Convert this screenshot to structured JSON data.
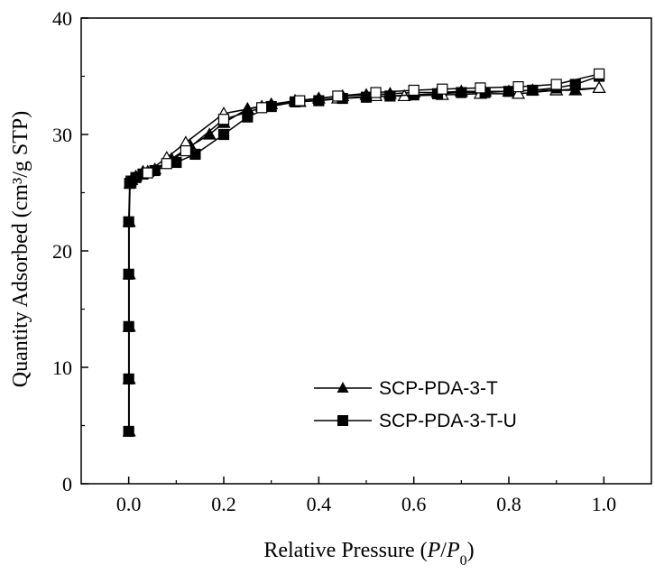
{
  "chart_data": {
    "type": "line",
    "xlabel_prefix": "Relative Pressure (",
    "xlabel_p": "P",
    "xlabel_slash": "/",
    "xlabel_p0": "P",
    "xlabel_p0_sub": "0",
    "xlabel_suffix": ")",
    "ylabel": "Quantity Adsorbed (cm³/g STP)",
    "xlim": [
      -0.1,
      1.1
    ],
    "ylim": [
      0,
      40
    ],
    "xticks": [
      0.0,
      0.2,
      0.4,
      0.6,
      0.8,
      1.0
    ],
    "xtick_labels": [
      "0.0",
      "0.2",
      "0.4",
      "0.6",
      "0.8",
      "1.0"
    ],
    "yticks": [
      0,
      10,
      20,
      30,
      40
    ],
    "ytick_labels": [
      "0",
      "10",
      "20",
      "30",
      "40"
    ],
    "grid": false,
    "legend_position": "lower-right",
    "series": [
      {
        "name": "SCP-PDA-3-T",
        "marker": "triangle",
        "color": "#000000",
        "adsorption": [
          [
            0.001,
            4.5
          ],
          [
            0.001,
            9.0
          ],
          [
            0.001,
            13.5
          ],
          [
            0.001,
            18.0
          ],
          [
            0.001,
            22.5
          ],
          [
            0.003,
            25.8
          ],
          [
            0.006,
            26.1
          ],
          [
            0.015,
            26.4
          ],
          [
            0.03,
            26.8
          ],
          [
            0.055,
            27.0
          ],
          [
            0.09,
            27.9
          ],
          [
            0.13,
            29.0
          ],
          [
            0.17,
            30.0
          ],
          [
            0.2,
            31.0
          ],
          [
            0.25,
            32.2
          ],
          [
            0.3,
            32.6
          ],
          [
            0.35,
            32.9
          ],
          [
            0.4,
            33.1
          ],
          [
            0.45,
            33.3
          ],
          [
            0.5,
            33.4
          ],
          [
            0.55,
            33.5
          ],
          [
            0.6,
            33.6
          ],
          [
            0.65,
            33.6
          ],
          [
            0.7,
            33.7
          ],
          [
            0.75,
            33.7
          ],
          [
            0.8,
            33.7
          ],
          [
            0.85,
            33.8
          ],
          [
            0.9,
            33.8
          ],
          [
            0.94,
            33.8
          ],
          [
            0.99,
            34.0
          ]
        ],
        "desorption": [
          [
            0.99,
            34.0
          ],
          [
            0.9,
            33.8
          ],
          [
            0.82,
            33.5
          ],
          [
            0.74,
            33.5
          ],
          [
            0.66,
            33.4
          ],
          [
            0.58,
            33.3
          ],
          [
            0.52,
            33.3
          ],
          [
            0.44,
            33.1
          ],
          [
            0.36,
            32.8
          ],
          [
            0.28,
            32.4
          ],
          [
            0.2,
            31.8
          ],
          [
            0.12,
            29.3
          ],
          [
            0.08,
            28.0
          ],
          [
            0.04,
            26.8
          ]
        ]
      },
      {
        "name": "SCP-PDA-3-T-U",
        "marker": "square",
        "color": "#000000",
        "adsorption": [
          [
            0.0,
            4.5
          ],
          [
            0.0,
            9.0
          ],
          [
            0.0,
            13.5
          ],
          [
            0.0,
            18.0
          ],
          [
            0.0,
            22.5
          ],
          [
            0.002,
            25.8
          ],
          [
            0.005,
            26.0
          ],
          [
            0.015,
            26.3
          ],
          [
            0.03,
            26.6
          ],
          [
            0.055,
            26.9
          ],
          [
            0.1,
            27.6
          ],
          [
            0.14,
            28.3
          ],
          [
            0.2,
            30.0
          ],
          [
            0.25,
            31.5
          ],
          [
            0.3,
            32.4
          ],
          [
            0.35,
            32.8
          ],
          [
            0.4,
            32.9
          ],
          [
            0.45,
            33.1
          ],
          [
            0.5,
            33.2
          ],
          [
            0.55,
            33.3
          ],
          [
            0.6,
            33.4
          ],
          [
            0.65,
            33.5
          ],
          [
            0.7,
            33.6
          ],
          [
            0.75,
            33.6
          ],
          [
            0.8,
            33.7
          ],
          [
            0.85,
            33.8
          ],
          [
            0.9,
            34.0
          ],
          [
            0.94,
            34.3
          ],
          [
            0.99,
            35.0
          ]
        ],
        "desorption": [
          [
            0.99,
            35.2
          ],
          [
            0.9,
            34.3
          ],
          [
            0.82,
            34.1
          ],
          [
            0.74,
            34.0
          ],
          [
            0.66,
            33.9
          ],
          [
            0.6,
            33.8
          ],
          [
            0.52,
            33.6
          ],
          [
            0.44,
            33.3
          ],
          [
            0.36,
            32.9
          ],
          [
            0.28,
            32.3
          ],
          [
            0.2,
            31.3
          ],
          [
            0.12,
            28.6
          ],
          [
            0.08,
            27.5
          ],
          [
            0.04,
            26.7
          ]
        ]
      }
    ]
  }
}
